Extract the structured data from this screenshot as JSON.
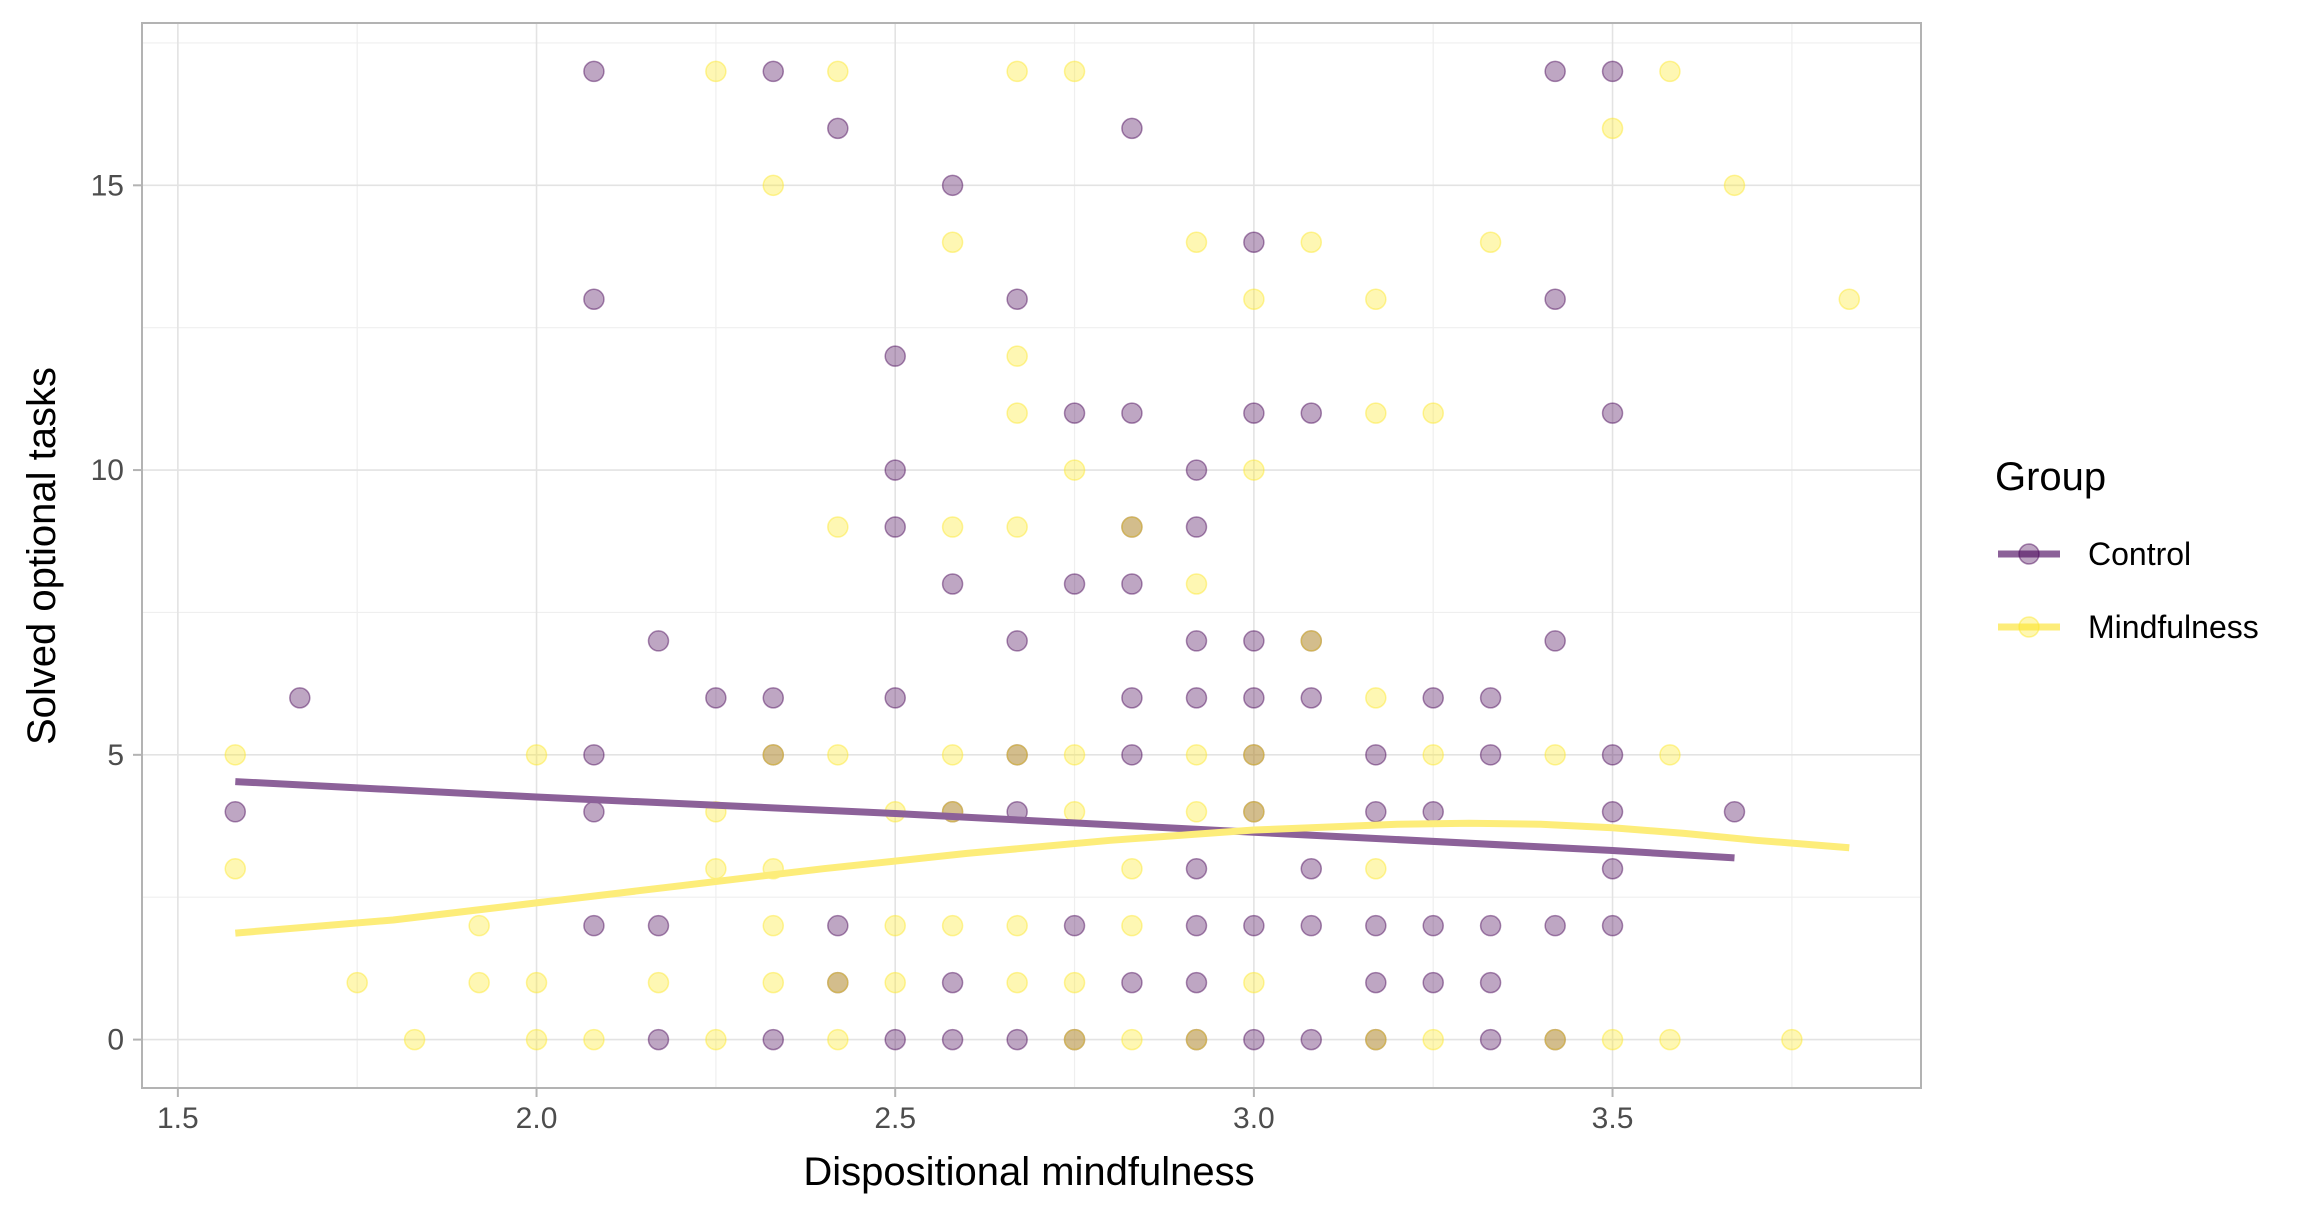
{
  "chart_data": {
    "type": "scatter",
    "xlabel": "Dispositional mindfulness",
    "ylabel": "Solved optional tasks",
    "xlim": [
      1.45,
      3.93
    ],
    "ylim": [
      -0.85,
      17.85
    ],
    "x_ticks": [
      1.5,
      2.0,
      2.5,
      3.0,
      3.5
    ],
    "x_tick_labels": [
      "1.5",
      "2.0",
      "2.5",
      "3.0",
      "3.5"
    ],
    "y_ticks": [
      0,
      5,
      10,
      15
    ],
    "y_tick_labels": [
      "0",
      "5",
      "10",
      "15"
    ],
    "grid": true,
    "legend": {
      "title": "Group",
      "position": "right",
      "entries": [
        "Control",
        "Mindfulness"
      ]
    },
    "colors": {
      "Control": "#440154",
      "Mindfulness": "#FDE725",
      "Control_line": "#8C6199",
      "Mindfulness_line": "#FDED7A",
      "grid": "#e3e3e3",
      "border": "#b3b3b3"
    },
    "series": [
      {
        "name": "Control",
        "points": [
          [
            1.58,
            4
          ],
          [
            1.67,
            6
          ],
          [
            2.08,
            17
          ],
          [
            2.08,
            13
          ],
          [
            2.08,
            5
          ],
          [
            2.08,
            4
          ],
          [
            2.08,
            2
          ],
          [
            2.17,
            7
          ],
          [
            2.17,
            2
          ],
          [
            2.17,
            0
          ],
          [
            2.25,
            6
          ],
          [
            2.33,
            17
          ],
          [
            2.33,
            6
          ],
          [
            2.33,
            5
          ],
          [
            2.33,
            0
          ],
          [
            2.42,
            16
          ],
          [
            2.42,
            2
          ],
          [
            2.42,
            1
          ],
          [
            2.5,
            12
          ],
          [
            2.5,
            10
          ],
          [
            2.5,
            9
          ],
          [
            2.5,
            6
          ],
          [
            2.5,
            0
          ],
          [
            2.58,
            15
          ],
          [
            2.58,
            8
          ],
          [
            2.58,
            4
          ],
          [
            2.58,
            1
          ],
          [
            2.58,
            0
          ],
          [
            2.67,
            13
          ],
          [
            2.67,
            7
          ],
          [
            2.67,
            5
          ],
          [
            2.67,
            4
          ],
          [
            2.67,
            0
          ],
          [
            2.75,
            11
          ],
          [
            2.75,
            8
          ],
          [
            2.75,
            2
          ],
          [
            2.75,
            0
          ],
          [
            2.83,
            16
          ],
          [
            2.83,
            11
          ],
          [
            2.83,
            9
          ],
          [
            2.83,
            8
          ],
          [
            2.83,
            6
          ],
          [
            2.83,
            5
          ],
          [
            2.83,
            1
          ],
          [
            2.92,
            10
          ],
          [
            2.92,
            9
          ],
          [
            2.92,
            7
          ],
          [
            2.92,
            6
          ],
          [
            2.92,
            3
          ],
          [
            2.92,
            2
          ],
          [
            2.92,
            1
          ],
          [
            2.92,
            0
          ],
          [
            3.0,
            14
          ],
          [
            3.0,
            11
          ],
          [
            3.0,
            7
          ],
          [
            3.0,
            6
          ],
          [
            3.0,
            5
          ],
          [
            3.0,
            4
          ],
          [
            3.0,
            2
          ],
          [
            3.0,
            0
          ],
          [
            3.08,
            11
          ],
          [
            3.08,
            7
          ],
          [
            3.08,
            6
          ],
          [
            3.08,
            3
          ],
          [
            3.08,
            2
          ],
          [
            3.08,
            0
          ],
          [
            3.17,
            5
          ],
          [
            3.17,
            4
          ],
          [
            3.17,
            2
          ],
          [
            3.17,
            1
          ],
          [
            3.17,
            0
          ],
          [
            3.25,
            6
          ],
          [
            3.25,
            4
          ],
          [
            3.25,
            2
          ],
          [
            3.25,
            1
          ],
          [
            3.33,
            6
          ],
          [
            3.33,
            5
          ],
          [
            3.33,
            2
          ],
          [
            3.33,
            1
          ],
          [
            3.33,
            0
          ],
          [
            3.42,
            17
          ],
          [
            3.42,
            13
          ],
          [
            3.42,
            7
          ],
          [
            3.42,
            2
          ],
          [
            3.42,
            0
          ],
          [
            3.5,
            17
          ],
          [
            3.5,
            11
          ],
          [
            3.5,
            5
          ],
          [
            3.5,
            4
          ],
          [
            3.5,
            3
          ],
          [
            3.5,
            2
          ],
          [
            3.67,
            4
          ]
        ],
        "trend": [
          [
            1.58,
            4.53
          ],
          [
            2.0,
            4.26
          ],
          [
            2.5,
            3.97
          ],
          [
            3.0,
            3.64
          ],
          [
            3.5,
            3.32
          ],
          [
            3.67,
            3.19
          ]
        ]
      },
      {
        "name": "Mindfulness",
        "points": [
          [
            1.58,
            5
          ],
          [
            1.58,
            3
          ],
          [
            1.75,
            1
          ],
          [
            1.83,
            0
          ],
          [
            1.92,
            2
          ],
          [
            1.92,
            1
          ],
          [
            2.0,
            5
          ],
          [
            2.0,
            1
          ],
          [
            2.0,
            0
          ],
          [
            2.08,
            0
          ],
          [
            2.17,
            1
          ],
          [
            2.25,
            17
          ],
          [
            2.25,
            4
          ],
          [
            2.25,
            3
          ],
          [
            2.25,
            0
          ],
          [
            2.33,
            15
          ],
          [
            2.33,
            5
          ],
          [
            2.33,
            3
          ],
          [
            2.33,
            2
          ],
          [
            2.33,
            1
          ],
          [
            2.42,
            17
          ],
          [
            2.42,
            9
          ],
          [
            2.42,
            5
          ],
          [
            2.42,
            1
          ],
          [
            2.42,
            0
          ],
          [
            2.5,
            4
          ],
          [
            2.5,
            2
          ],
          [
            2.5,
            1
          ],
          [
            2.58,
            14
          ],
          [
            2.58,
            9
          ],
          [
            2.58,
            5
          ],
          [
            2.58,
            4
          ],
          [
            2.58,
            2
          ],
          [
            2.67,
            17
          ],
          [
            2.67,
            12
          ],
          [
            2.67,
            11
          ],
          [
            2.67,
            9
          ],
          [
            2.67,
            5
          ],
          [
            2.67,
            2
          ],
          [
            2.67,
            1
          ],
          [
            2.75,
            17
          ],
          [
            2.75,
            10
          ],
          [
            2.75,
            5
          ],
          [
            2.75,
            4
          ],
          [
            2.75,
            1
          ],
          [
            2.75,
            0
          ],
          [
            2.83,
            9
          ],
          [
            2.83,
            3
          ],
          [
            2.83,
            2
          ],
          [
            2.83,
            0
          ],
          [
            2.92,
            14
          ],
          [
            2.92,
            8
          ],
          [
            2.92,
            5
          ],
          [
            2.92,
            4
          ],
          [
            2.92,
            0
          ],
          [
            3.0,
            13
          ],
          [
            3.0,
            10
          ],
          [
            3.0,
            5
          ],
          [
            3.0,
            4
          ],
          [
            3.0,
            1
          ],
          [
            3.08,
            14
          ],
          [
            3.08,
            7
          ],
          [
            3.17,
            13
          ],
          [
            3.17,
            11
          ],
          [
            3.17,
            6
          ],
          [
            3.17,
            3
          ],
          [
            3.17,
            0
          ],
          [
            3.25,
            11
          ],
          [
            3.25,
            5
          ],
          [
            3.25,
            0
          ],
          [
            3.33,
            14
          ],
          [
            3.42,
            5
          ],
          [
            3.42,
            0
          ],
          [
            3.5,
            16
          ],
          [
            3.5,
            0
          ],
          [
            3.58,
            17
          ],
          [
            3.58,
            5
          ],
          [
            3.58,
            0
          ],
          [
            3.67,
            15
          ],
          [
            3.75,
            0
          ],
          [
            3.83,
            13
          ]
        ],
        "trend": [
          [
            1.58,
            1.87
          ],
          [
            1.8,
            2.1
          ],
          [
            2.0,
            2.4
          ],
          [
            2.2,
            2.7
          ],
          [
            2.4,
            3.0
          ],
          [
            2.6,
            3.27
          ],
          [
            2.8,
            3.5
          ],
          [
            3.0,
            3.68
          ],
          [
            3.2,
            3.78
          ],
          [
            3.3,
            3.8
          ],
          [
            3.4,
            3.78
          ],
          [
            3.5,
            3.72
          ],
          [
            3.6,
            3.62
          ],
          [
            3.7,
            3.5
          ],
          [
            3.83,
            3.37
          ]
        ]
      }
    ]
  }
}
